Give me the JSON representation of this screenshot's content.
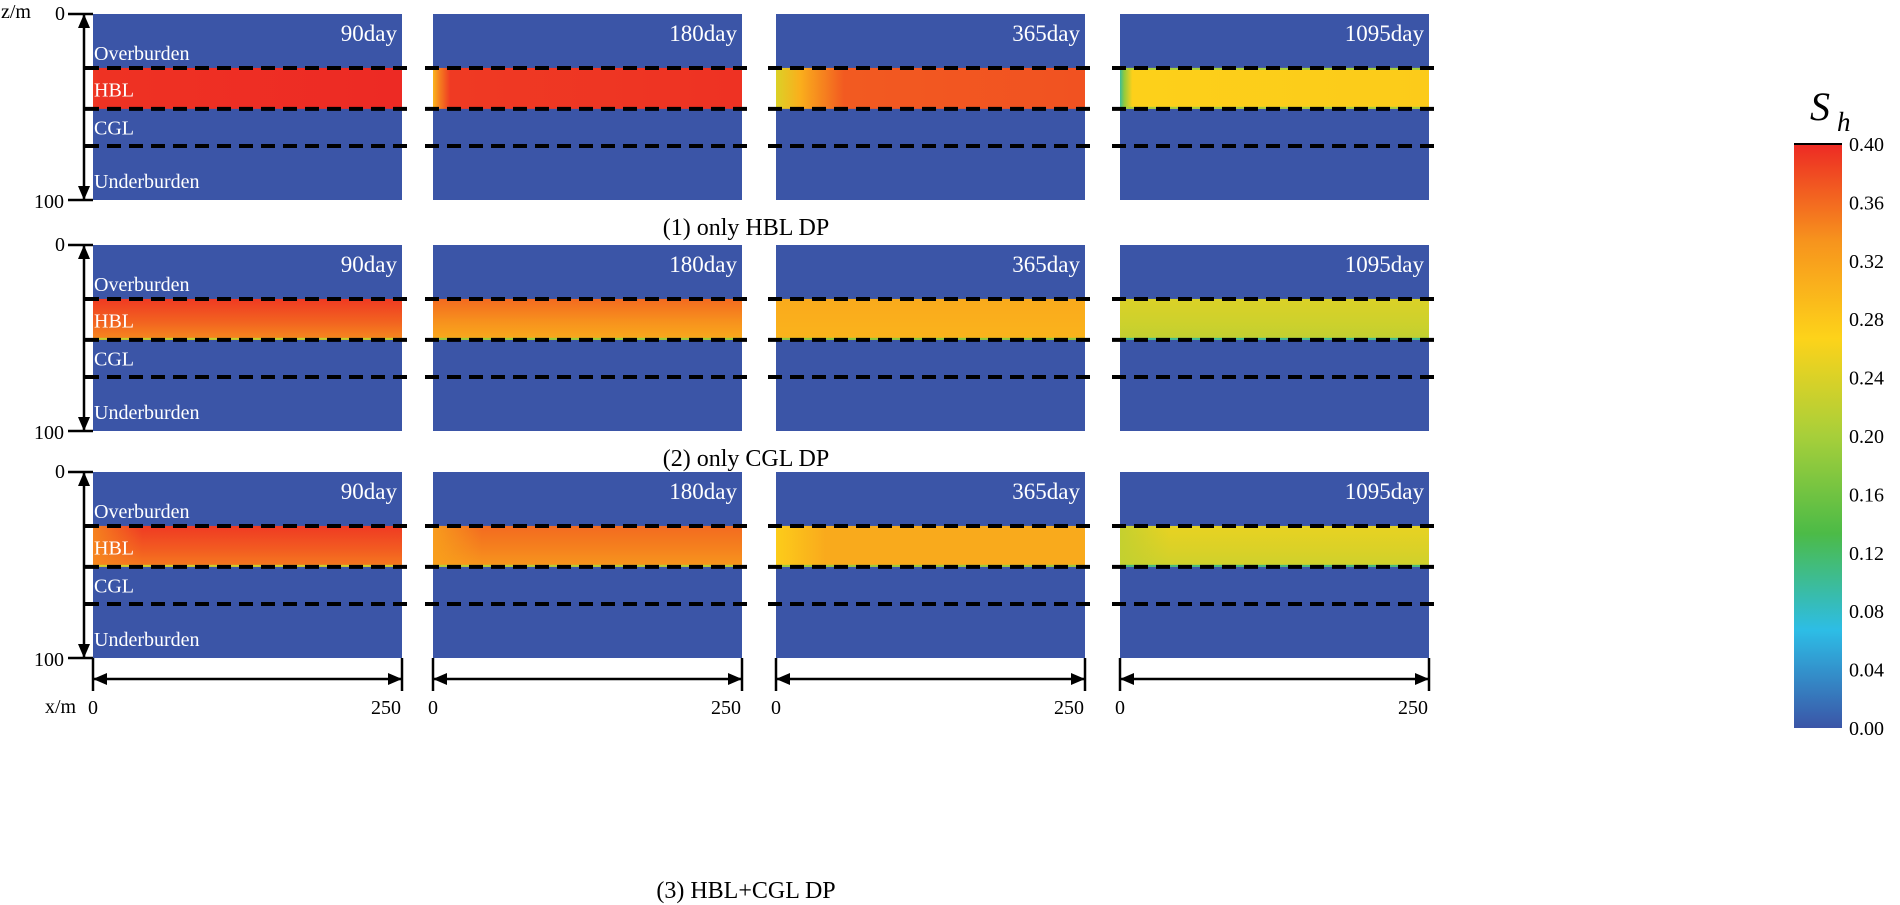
{
  "chart_data": {
    "type": "heatmap",
    "quantity_label": "S",
    "quantity_subscript": "h",
    "colorbar": {
      "min": 0.0,
      "max": 0.4,
      "ticks": [
        "0.40",
        "0.36",
        "0.32",
        "0.28",
        "0.24",
        "0.20",
        "0.16",
        "0.12",
        "0.08",
        "0.04",
        "0.00"
      ],
      "colors": [
        "#3b55a7",
        "#2dbde6",
        "#4cbb47",
        "#a7cf3a",
        "#fdd31a",
        "#f7941d",
        "#ed2a24"
      ]
    },
    "layers": [
      "Overburden",
      "HBL",
      "CGL",
      "Underburden"
    ],
    "layer_depths_m": {
      "overburden_bottom": 29,
      "hbl_bottom": 51,
      "cgl_bottom": 71
    },
    "z_axis": {
      "label": "z/m",
      "min": 0,
      "max": 100,
      "min_label": "0",
      "max_label": "100"
    },
    "x_axis": {
      "label": "x/m",
      "min": 0,
      "max": 250,
      "min_label": "0",
      "max_label": "250"
    },
    "times": [
      "90day",
      "180day",
      "365day",
      "1095day"
    ],
    "background_sh": 0.0,
    "rows": [
      {
        "caption": "(1) only HBL DP",
        "panels": [
          {
            "time": "90day",
            "sh_inlet": 0.39,
            "sh_bulk": 0.395,
            "front_m": 0
          },
          {
            "time": "180day",
            "sh_inlet": 0.3,
            "sh_bulk": 0.39,
            "front_m": 14
          },
          {
            "time": "365day",
            "sh_inlet": 0.24,
            "sh_bulk": 0.37,
            "front_m": 55
          },
          {
            "time": "1095day",
            "sh_inlet": 0.1,
            "sh_bulk": 0.27,
            "front_m": 10
          }
        ]
      },
      {
        "caption": "(2) only CGL DP",
        "panels": [
          {
            "time": "90day",
            "sh_top": 0.39,
            "sh_bottom": 0.34
          },
          {
            "time": "180day",
            "sh_top": 0.36,
            "sh_bottom": 0.31
          },
          {
            "time": "365day",
            "sh_top": 0.31,
            "sh_bottom": 0.3
          },
          {
            "time": "1095day",
            "sh_top": 0.24,
            "sh_bottom": 0.22
          }
        ]
      },
      {
        "caption": "(3) HBL+CGL DP",
        "panels": [
          {
            "time": "90day",
            "sh_inlet": 0.34,
            "sh_top": 0.39,
            "sh_bottom": 0.35
          },
          {
            "time": "180day",
            "sh_inlet": 0.32,
            "sh_top": 0.36,
            "sh_bottom": 0.33
          },
          {
            "time": "365day",
            "sh_inlet": 0.27,
            "sh_top": 0.31,
            "sh_bottom": 0.31
          },
          {
            "time": "1095day",
            "sh_inlet": 0.22,
            "sh_top": 0.25,
            "sh_bottom": 0.23
          }
        ]
      }
    ]
  }
}
